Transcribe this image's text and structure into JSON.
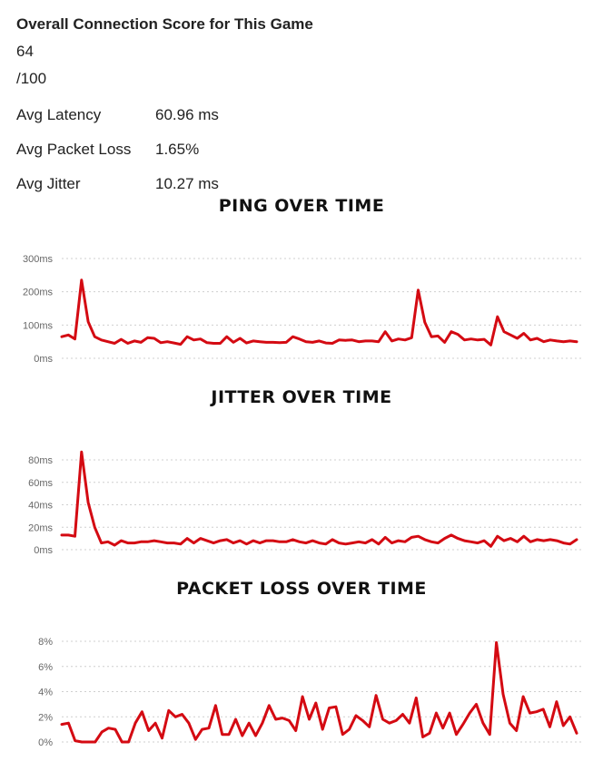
{
  "summary": {
    "title": "Overall Connection Score for This Game",
    "score": "64",
    "score_max": "/100",
    "stats": [
      {
        "label": "Avg Latency",
        "value": "60.96 ms"
      },
      {
        "label": "Avg Packet Loss",
        "value": "1.65%"
      },
      {
        "label": "Avg Jitter",
        "value": "10.27 ms"
      }
    ]
  },
  "colors": {
    "series": "#d40a12",
    "grid": "#cfcfcf",
    "tick": "#666666"
  },
  "chart_data": [
    {
      "type": "line",
      "title": "PING OVER TIME",
      "ylim": [
        0,
        300
      ],
      "yticks": [
        0,
        100,
        200,
        300
      ],
      "ytick_labels": [
        "0ms",
        "100ms",
        "200ms",
        "300ms"
      ],
      "grid": true,
      "series": [
        {
          "values": [
            65,
            70,
            58,
            235,
            110,
            65,
            55,
            50,
            45,
            57,
            45,
            52,
            48,
            62,
            60,
            47,
            50,
            46,
            42,
            65,
            55,
            58,
            47,
            45,
            45,
            65,
            48,
            60,
            46,
            52,
            50,
            48,
            48,
            47,
            48,
            65,
            58,
            50,
            48,
            52,
            46,
            45,
            55,
            54,
            55,
            50,
            52,
            52,
            50,
            80,
            52,
            58,
            55,
            62,
            205,
            108,
            65,
            67,
            48,
            80,
            72,
            55,
            58,
            55,
            57,
            40,
            125,
            80,
            70,
            60,
            75,
            55,
            60,
            50,
            55,
            52,
            50,
            52,
            50
          ]
        }
      ]
    },
    {
      "type": "line",
      "title": "JITTER OVER TIME",
      "ylim": [
        0,
        80
      ],
      "yticks": [
        0,
        20,
        40,
        60,
        80
      ],
      "ytick_labels": [
        "0ms",
        "20ms",
        "40ms",
        "60ms",
        "80ms"
      ],
      "grid": true,
      "series": [
        {
          "values": [
            13,
            13,
            12,
            87,
            42,
            20,
            6,
            7,
            4,
            8,
            6,
            6,
            7,
            7,
            8,
            7,
            6,
            6,
            5,
            10,
            6,
            10,
            8,
            6,
            8,
            9,
            6,
            8,
            5,
            8,
            6,
            8,
            8,
            7,
            7,
            9,
            7,
            6,
            8,
            6,
            5,
            9,
            6,
            5,
            6,
            7,
            6,
            9,
            5,
            11,
            6,
            8,
            7,
            11,
            12,
            9,
            7,
            6,
            10,
            13,
            10,
            8,
            7,
            6,
            8,
            3,
            12,
            8,
            10,
            7,
            12,
            7,
            9,
            8,
            9,
            8,
            6,
            5,
            9
          ]
        }
      ]
    },
    {
      "type": "line",
      "title": "PACKET LOSS OVER TIME",
      "ylim": [
        0,
        8
      ],
      "yticks": [
        0,
        2,
        4,
        6,
        8
      ],
      "ytick_labels": [
        "0%",
        "2%",
        "4%",
        "6%",
        "8%"
      ],
      "grid": true,
      "series": [
        {
          "values": [
            1.4,
            1.5,
            0.1,
            0.0,
            0.0,
            0.0,
            0.8,
            1.1,
            1.0,
            0.0,
            0.0,
            1.5,
            2.4,
            0.9,
            1.5,
            0.3,
            2.5,
            2.0,
            2.2,
            1.5,
            0.2,
            1.0,
            1.1,
            2.9,
            0.6,
            0.6,
            1.8,
            0.5,
            1.5,
            0.5,
            1.5,
            2.9,
            1.8,
            1.9,
            1.7,
            0.9,
            3.6,
            1.8,
            3.1,
            1.0,
            2.7,
            2.8,
            0.6,
            1.0,
            2.1,
            1.7,
            1.2,
            3.7,
            1.8,
            1.5,
            1.7,
            2.2,
            1.5,
            3.5,
            0.4,
            0.7,
            2.3,
            1.1,
            2.3,
            0.6,
            1.4,
            2.3,
            3.0,
            1.5,
            0.6,
            7.9,
            3.8,
            1.5,
            0.9,
            3.6,
            2.3,
            2.4,
            2.6,
            1.2,
            3.2,
            1.3,
            2.0,
            0.7
          ]
        }
      ]
    }
  ]
}
